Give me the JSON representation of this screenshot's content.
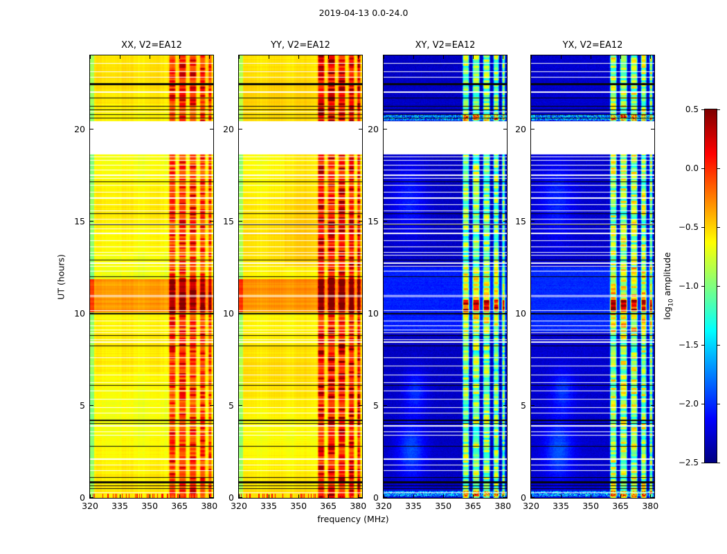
{
  "chart_data": {
    "type": "heatmap",
    "title": "2019-04-13 0.0-24.0",
    "xlabel": "frequency (MHz)",
    "ylabel": "UT (hours)",
    "x_range": [
      320,
      382
    ],
    "y_range": [
      0,
      24
    ],
    "xticks": [
      320,
      335,
      350,
      365,
      380
    ],
    "xtick_labels": [
      "320",
      "335",
      "350",
      "365",
      "380"
    ],
    "yticks": [
      0,
      5,
      10,
      15,
      20
    ],
    "ytick_labels": [
      "0",
      "5",
      "10",
      "15",
      "20"
    ],
    "colorbar": {
      "label_prefix": "log",
      "label_sub": "10",
      "label_suffix": " amplitude",
      "range": [
        -2.5,
        0.5
      ],
      "ticks": [
        0.5,
        0.0,
        -0.5,
        -1.0,
        -1.5,
        -2.0,
        -2.5
      ],
      "tick_labels": [
        "0.5",
        "0.0",
        "−0.5",
        "−1.0",
        "−1.5",
        "−2.0",
        "−2.5"
      ],
      "colormap": "jet"
    },
    "panels": [
      {
        "title": "XX, V2=EA12",
        "mode": "warm",
        "base": -0.62,
        "rfi_gain": 1.0,
        "seed": 1,
        "warm_wash": 0
      },
      {
        "title": "YY, V2=EA12",
        "mode": "warm",
        "base": -0.58,
        "rfi_gain": 1.18,
        "seed": 2,
        "warm_wash": 0.07
      },
      {
        "title": "XY, V2=EA12",
        "mode": "cool",
        "base": -2.3,
        "rfi_gain": 1.0,
        "seed": 3,
        "warm_wash": 0
      },
      {
        "title": "YX, V2=EA12",
        "mode": "cool",
        "base": -2.27,
        "rfi_gain": 1.06,
        "seed": 4,
        "warm_wash": 0
      }
    ],
    "features": {
      "data_gaps": [
        [
          18.65,
          20.45
        ]
      ],
      "rfi_bands": [
        [
          359.5,
          363.3
        ],
        [
          364.5,
          368.6
        ],
        [
          369.8,
          373.8
        ],
        [
          375.0,
          378.3
        ],
        [
          379.3,
          381.4
        ]
      ],
      "warm_event": {
        "t0": 10.05,
        "t1": 11.85,
        "boost": 0.32
      },
      "cool_event": {
        "t0": 9.0,
        "t1": 12.5,
        "boost": 0.26
      },
      "red_blob_window": {
        "t0": 10.1,
        "t1": 10.75,
        "boost": 0.8
      },
      "hot_rows": [
        20.55,
        20.7,
        0.3,
        0.15
      ],
      "cool_blobs": [
        {
          "f": 334,
          "t": 2.6,
          "sf": 5,
          "st": 1.1,
          "b": 0.4
        },
        {
          "f": 336,
          "t": 5.8,
          "sf": 4,
          "st": 0.8,
          "b": 0.3
        },
        {
          "f": 333,
          "t": 16.2,
          "sf": 6,
          "st": 1.5,
          "b": 0.25
        }
      ],
      "black_lines": [
        {
          "t": 22.45,
          "w": 3
        },
        {
          "t": 21.7,
          "w": 1
        },
        {
          "t": 21.25,
          "w": 1
        },
        {
          "t": 21.05,
          "w": 1
        },
        {
          "t": 20.8,
          "w": 1
        },
        {
          "t": 20.6,
          "w": 1
        },
        {
          "t": 17.15,
          "w": 1
        },
        {
          "t": 15.4,
          "w": 1
        },
        {
          "t": 14.8,
          "w": 1
        },
        {
          "t": 12.9,
          "w": 1
        },
        {
          "t": 12.0,
          "w": 1
        },
        {
          "t": 10.0,
          "w": 2
        },
        {
          "t": 8.8,
          "w": 1
        },
        {
          "t": 8.25,
          "w": 1
        },
        {
          "t": 6.1,
          "w": 1
        },
        {
          "t": 4.2,
          "w": 2
        },
        {
          "t": 4.05,
          "w": 1
        },
        {
          "t": 2.8,
          "w": 1
        },
        {
          "t": 1.1,
          "w": 1
        },
        {
          "t": 0.85,
          "w": 3
        },
        {
          "t": 0.65,
          "w": 1
        },
        {
          "t": 0.5,
          "w": 1
        }
      ],
      "white_lines": [
        {
          "t": 23.55,
          "w": 1
        },
        {
          "t": 23.1,
          "w": 1
        },
        {
          "t": 22.8,
          "w": 1
        },
        {
          "t": 22.0,
          "w": 2
        },
        {
          "t": 20.95,
          "w": 1
        },
        {
          "t": 18.5,
          "w": 1
        },
        {
          "t": 18.3,
          "w": 1
        },
        {
          "t": 18.05,
          "w": 1
        },
        {
          "t": 17.8,
          "w": 1
        },
        {
          "t": 17.5,
          "w": 2
        },
        {
          "t": 17.35,
          "w": 1
        },
        {
          "t": 16.95,
          "w": 1
        },
        {
          "t": 16.6,
          "w": 1
        },
        {
          "t": 16.25,
          "w": 2
        },
        {
          "t": 15.9,
          "w": 1
        },
        {
          "t": 15.55,
          "w": 1
        },
        {
          "t": 15.1,
          "w": 1
        },
        {
          "t": 14.85,
          "w": 1
        },
        {
          "t": 14.6,
          "w": 1
        },
        {
          "t": 14.35,
          "w": 2
        },
        {
          "t": 13.95,
          "w": 1
        },
        {
          "t": 13.6,
          "w": 1
        },
        {
          "t": 13.3,
          "w": 1
        },
        {
          "t": 13.15,
          "w": 1
        },
        {
          "t": 12.75,
          "w": 2
        },
        {
          "t": 12.55,
          "w": 1
        },
        {
          "t": 12.3,
          "w": 1
        },
        {
          "t": 11.0,
          "w": 1
        },
        {
          "t": 10.9,
          "w": 1
        },
        {
          "t": 10.15,
          "w": 1
        },
        {
          "t": 9.6,
          "w": 1
        },
        {
          "t": 9.35,
          "w": 1
        },
        {
          "t": 9.1,
          "w": 1
        },
        {
          "t": 8.95,
          "w": 1
        },
        {
          "t": 8.6,
          "w": 1
        },
        {
          "t": 8.45,
          "w": 2
        },
        {
          "t": 7.6,
          "w": 1
        },
        {
          "t": 7.15,
          "w": 1
        },
        {
          "t": 6.65,
          "w": 1
        },
        {
          "t": 6.25,
          "w": 1
        },
        {
          "t": 5.8,
          "w": 1
        },
        {
          "t": 5.35,
          "w": 1
        },
        {
          "t": 4.9,
          "w": 1
        },
        {
          "t": 4.6,
          "w": 1
        },
        {
          "t": 3.9,
          "w": 2
        },
        {
          "t": 3.6,
          "w": 1
        },
        {
          "t": 3.4,
          "w": 1
        },
        {
          "t": 2.1,
          "w": 2
        },
        {
          "t": 1.8,
          "w": 1
        },
        {
          "t": 1.5,
          "w": 1
        },
        {
          "t": 0.3,
          "w": 1
        }
      ]
    }
  }
}
